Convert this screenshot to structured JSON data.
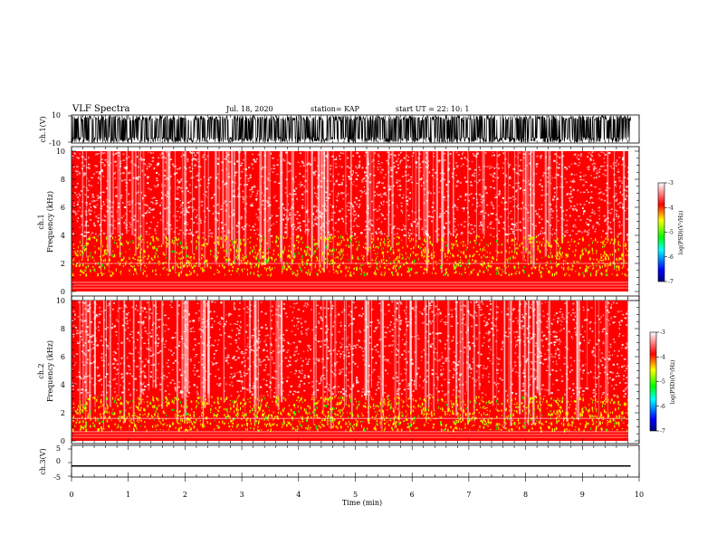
{
  "header": {
    "title": "VLF Spectra",
    "date": "Jul. 18, 2020",
    "station": "station= KAP",
    "start": "start UT =  22: 10: 1"
  },
  "colors": {
    "ink": "#000000",
    "spectrogram_bg": "#ff0000",
    "cmap": [
      "#00007f",
      "#0000ff",
      "#00ffff",
      "#00ff00",
      "#ffff00",
      "#ff0000",
      "#ffffff"
    ]
  },
  "chart_data": [
    {
      "type": "line",
      "panel": "ch1-waveform",
      "ylabel": "ch.1(V)",
      "ylim": [
        -10,
        10
      ],
      "ytick_labels": [
        "10",
        "-10"
      ],
      "xlim": [
        0,
        10
      ],
      "note_level": "signal saturating near ±10 V across the record"
    },
    {
      "type": "heatmap",
      "panel": "ch1-spectrogram",
      "ylabel": "ch.1",
      "ylabel2": "Frequency (kHz)",
      "ylim": [
        0,
        10
      ],
      "ytick_labels": [
        "0",
        "2",
        "4",
        "6",
        "8",
        "10"
      ],
      "xlim": [
        0,
        10
      ],
      "band_center_khz": 2.0,
      "strong_band_khz": [
        1.2,
        4.0
      ],
      "colorbar": {
        "label": "log(PSD)(V²/Hz)",
        "range": [
          -7,
          -3
        ],
        "tick_labels": [
          "-3",
          "-4",
          "-5",
          "-6",
          "-7"
        ]
      }
    },
    {
      "type": "heatmap",
      "panel": "ch2-spectrogram",
      "ylabel": "ch.2",
      "ylabel2": "Frequency (kHz)",
      "ylim": [
        0,
        10
      ],
      "ytick_labels": [
        "0",
        "2",
        "4",
        "6",
        "8",
        "10"
      ],
      "xlim": [
        0,
        10
      ],
      "band_center_khz": 1.6,
      "strong_band_khz": [
        0.8,
        3.2
      ],
      "colorbar": {
        "label": "log(PSD)(V²/Hz)",
        "range": [
          -7,
          -3
        ],
        "tick_labels": [
          "-3",
          "-4",
          "-5",
          "-6",
          "-7"
        ]
      }
    },
    {
      "type": "line",
      "panel": "ch3-waveform",
      "ylabel": "ch.3(V)",
      "ylim": [
        -5,
        5
      ],
      "ytick_labels": [
        "5",
        "0",
        "-5"
      ],
      "xlim": [
        0,
        10
      ],
      "xlabel": "Time (min)",
      "xtick_labels": [
        "0",
        "1",
        "2",
        "3",
        "4",
        "5",
        "6",
        "7",
        "8",
        "9",
        "10"
      ],
      "band_v": [
        -1.5,
        -1.0
      ]
    }
  ]
}
